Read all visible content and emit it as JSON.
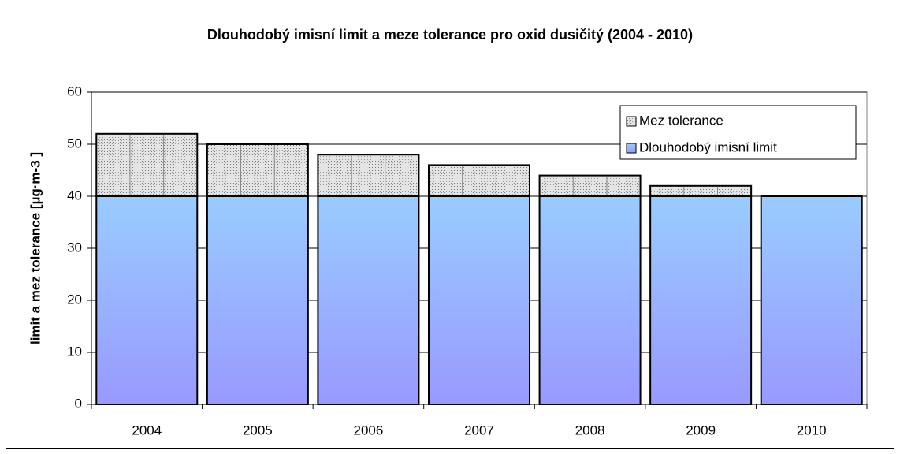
{
  "chart_data": {
    "type": "stacked_bar",
    "title": "Dlouhodobý imisní limit a meze tolerance pro oxid dusičitý (2004 - 2010)",
    "y_label": "limit a mez tolerance [µg·m-3 ]",
    "categories": [
      "2004",
      "2005",
      "2006",
      "2007",
      "2008",
      "2009",
      "2010"
    ],
    "series": [
      {
        "name": "Dlouhodobý imisní limit",
        "color": "#99ccff",
        "values": [
          40,
          40,
          40,
          40,
          40,
          40,
          40
        ]
      },
      {
        "name": "Mez tolerance",
        "color": "#c8c8c8",
        "values": [
          12,
          10,
          8,
          6,
          4,
          2,
          0
        ]
      }
    ],
    "ylim": [
      0,
      60
    ],
    "yticks": [
      0,
      10,
      20,
      30,
      40,
      50,
      60
    ],
    "grid": true,
    "legend": "top-right"
  }
}
